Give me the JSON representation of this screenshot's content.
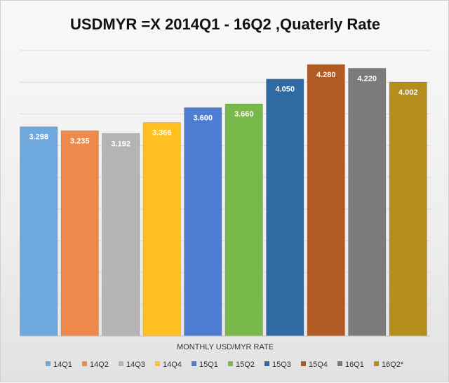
{
  "chart_data": {
    "type": "bar",
    "title": "USDMYR =X  2014Q1 - 16Q2 ,Quaterly Rate",
    "xlabel": "MONTHLY USD/MYR RATE",
    "ylabel": "",
    "ylim": [
      0,
      4.6
    ],
    "grid": true,
    "legend": "bottom",
    "categories": [
      "14Q1",
      "14Q2",
      "14Q3",
      "14Q4",
      "15Q1",
      "15Q2",
      "15Q3",
      "15Q4",
      "16Q1",
      "16Q2*"
    ],
    "values": [
      3.298,
      3.235,
      3.192,
      3.366,
      3.6,
      3.66,
      4.05,
      4.28,
      4.22,
      4.002
    ],
    "labels": [
      "3.298",
      "3.235",
      "3.192",
      "3.366",
      "3.600",
      "3.660",
      "4.050",
      "4.280",
      "4.220",
      "4.002"
    ],
    "colors": [
      "#6fa8dc",
      "#ed8a4c",
      "#b4b4b4",
      "#ffc222",
      "#4d7ed4",
      "#79b84a",
      "#2f6aa3",
      "#b15a24",
      "#7b7b7b",
      "#b58d1a"
    ]
  }
}
